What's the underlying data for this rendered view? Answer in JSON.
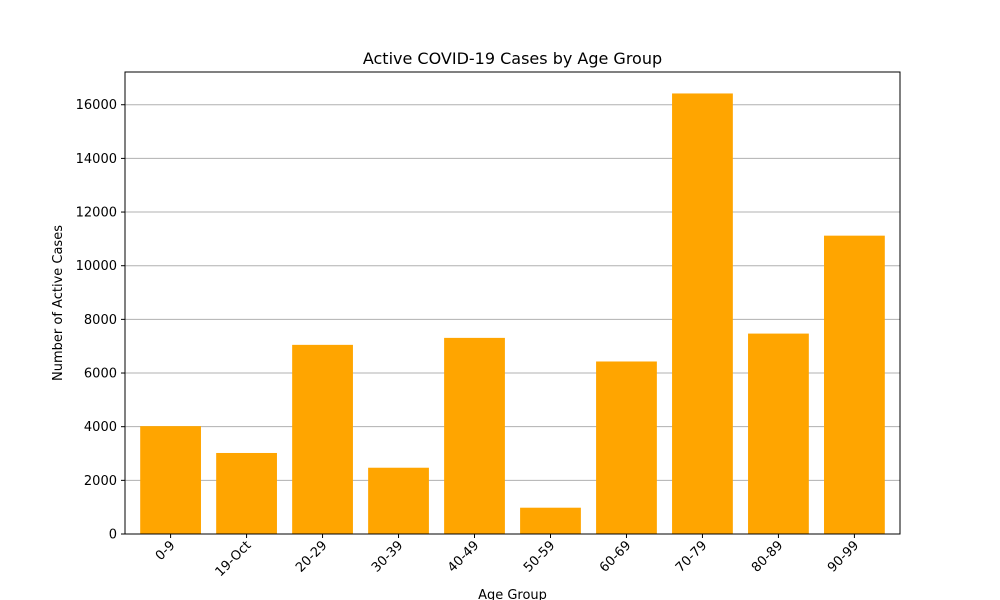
{
  "chart_data": {
    "type": "bar",
    "title": "Active COVID-19 Cases by Age Group",
    "xlabel": "Age Group",
    "ylabel": "Number of Active Cases",
    "categories": [
      "0-9",
      "19-Oct",
      "20-29",
      "30-39",
      "40-49",
      "50-59",
      "60-69",
      "70-79",
      "80-89",
      "90-99"
    ],
    "values": [
      4020,
      3020,
      7050,
      2470,
      7310,
      980,
      6430,
      16420,
      7470,
      11120
    ],
    "ylim": [
      0,
      17220
    ],
    "yticks": [
      0,
      2000,
      4000,
      6000,
      8000,
      10000,
      12000,
      14000,
      16000
    ],
    "ytick_labels": [
      "0",
      "2000",
      "4000",
      "6000",
      "8000",
      "10000",
      "12000",
      "14000",
      "16000"
    ],
    "grid": "y",
    "bar_color": "#ffa500",
    "grid_color": "#b0b0b0"
  }
}
